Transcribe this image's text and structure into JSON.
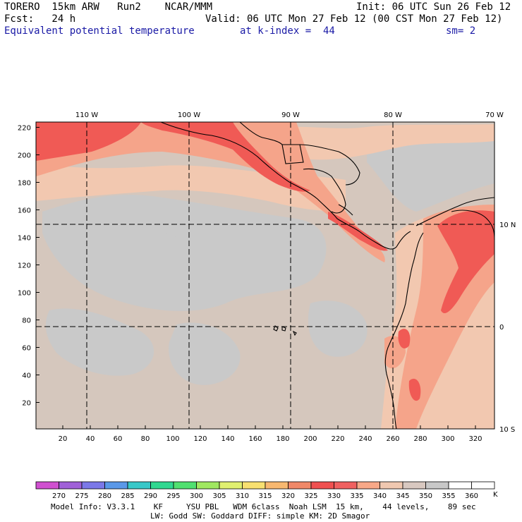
{
  "header": {
    "model": "TORERO  15km ARW   Run2    NCAR/MMM",
    "init": "Init: 06 UTC Sun 26 Feb 12",
    "fcst": "Fcst:   24 h",
    "valid": "Valid: 06 UTC Mon 27 Feb 12 (00 CST Mon 27 Feb 12)",
    "field": "Equivalent potential temperature",
    "level": "at k-index =  44",
    "smooth": "sm= 2"
  },
  "axes": {
    "lon_labels": [
      "110 W",
      "100 W",
      "90 W",
      "80 W",
      "70 W"
    ],
    "lat_labels": [
      "10 N",
      "0",
      "10 S"
    ],
    "y_ticks": [
      "220",
      "200",
      "180",
      "160",
      "140",
      "120",
      "100",
      "80",
      "60",
      "40",
      "20"
    ],
    "x_ticks": [
      "20",
      "40",
      "60",
      "80",
      "100",
      "120",
      "140",
      "160",
      "180",
      "200",
      "220",
      "240",
      "260",
      "280",
      "300",
      "320"
    ]
  },
  "colorbar": {
    "labels": [
      "270",
      "275",
      "280",
      "285",
      "290",
      "295",
      "300",
      "305",
      "310",
      "315",
      "320",
      "325",
      "330",
      "335",
      "340",
      "345",
      "350",
      "355",
      "360"
    ],
    "unit": "K",
    "colors": [
      "#d050d0",
      "#a060d8",
      "#7b78e8",
      "#5a98e8",
      "#38c8c8",
      "#30d890",
      "#50e070",
      "#a0e860",
      "#e0f070",
      "#f8e070",
      "#f8b870",
      "#f08868",
      "#f05050",
      "#f06060",
      "#f8a888",
      "#f0c8b0",
      "#d8c8c0",
      "#c8c8c8",
      "#ffffff",
      "#ffffff"
    ]
  },
  "footer": {
    "line1": "Model Info: V3.3.1    KF     YSU PBL   WDM 6class  Noah LSM  15 km,    44 levels,    89 sec",
    "line2": "LW: Godd SW: Goddard DIFF: simple KM: 2D Smagor"
  }
}
